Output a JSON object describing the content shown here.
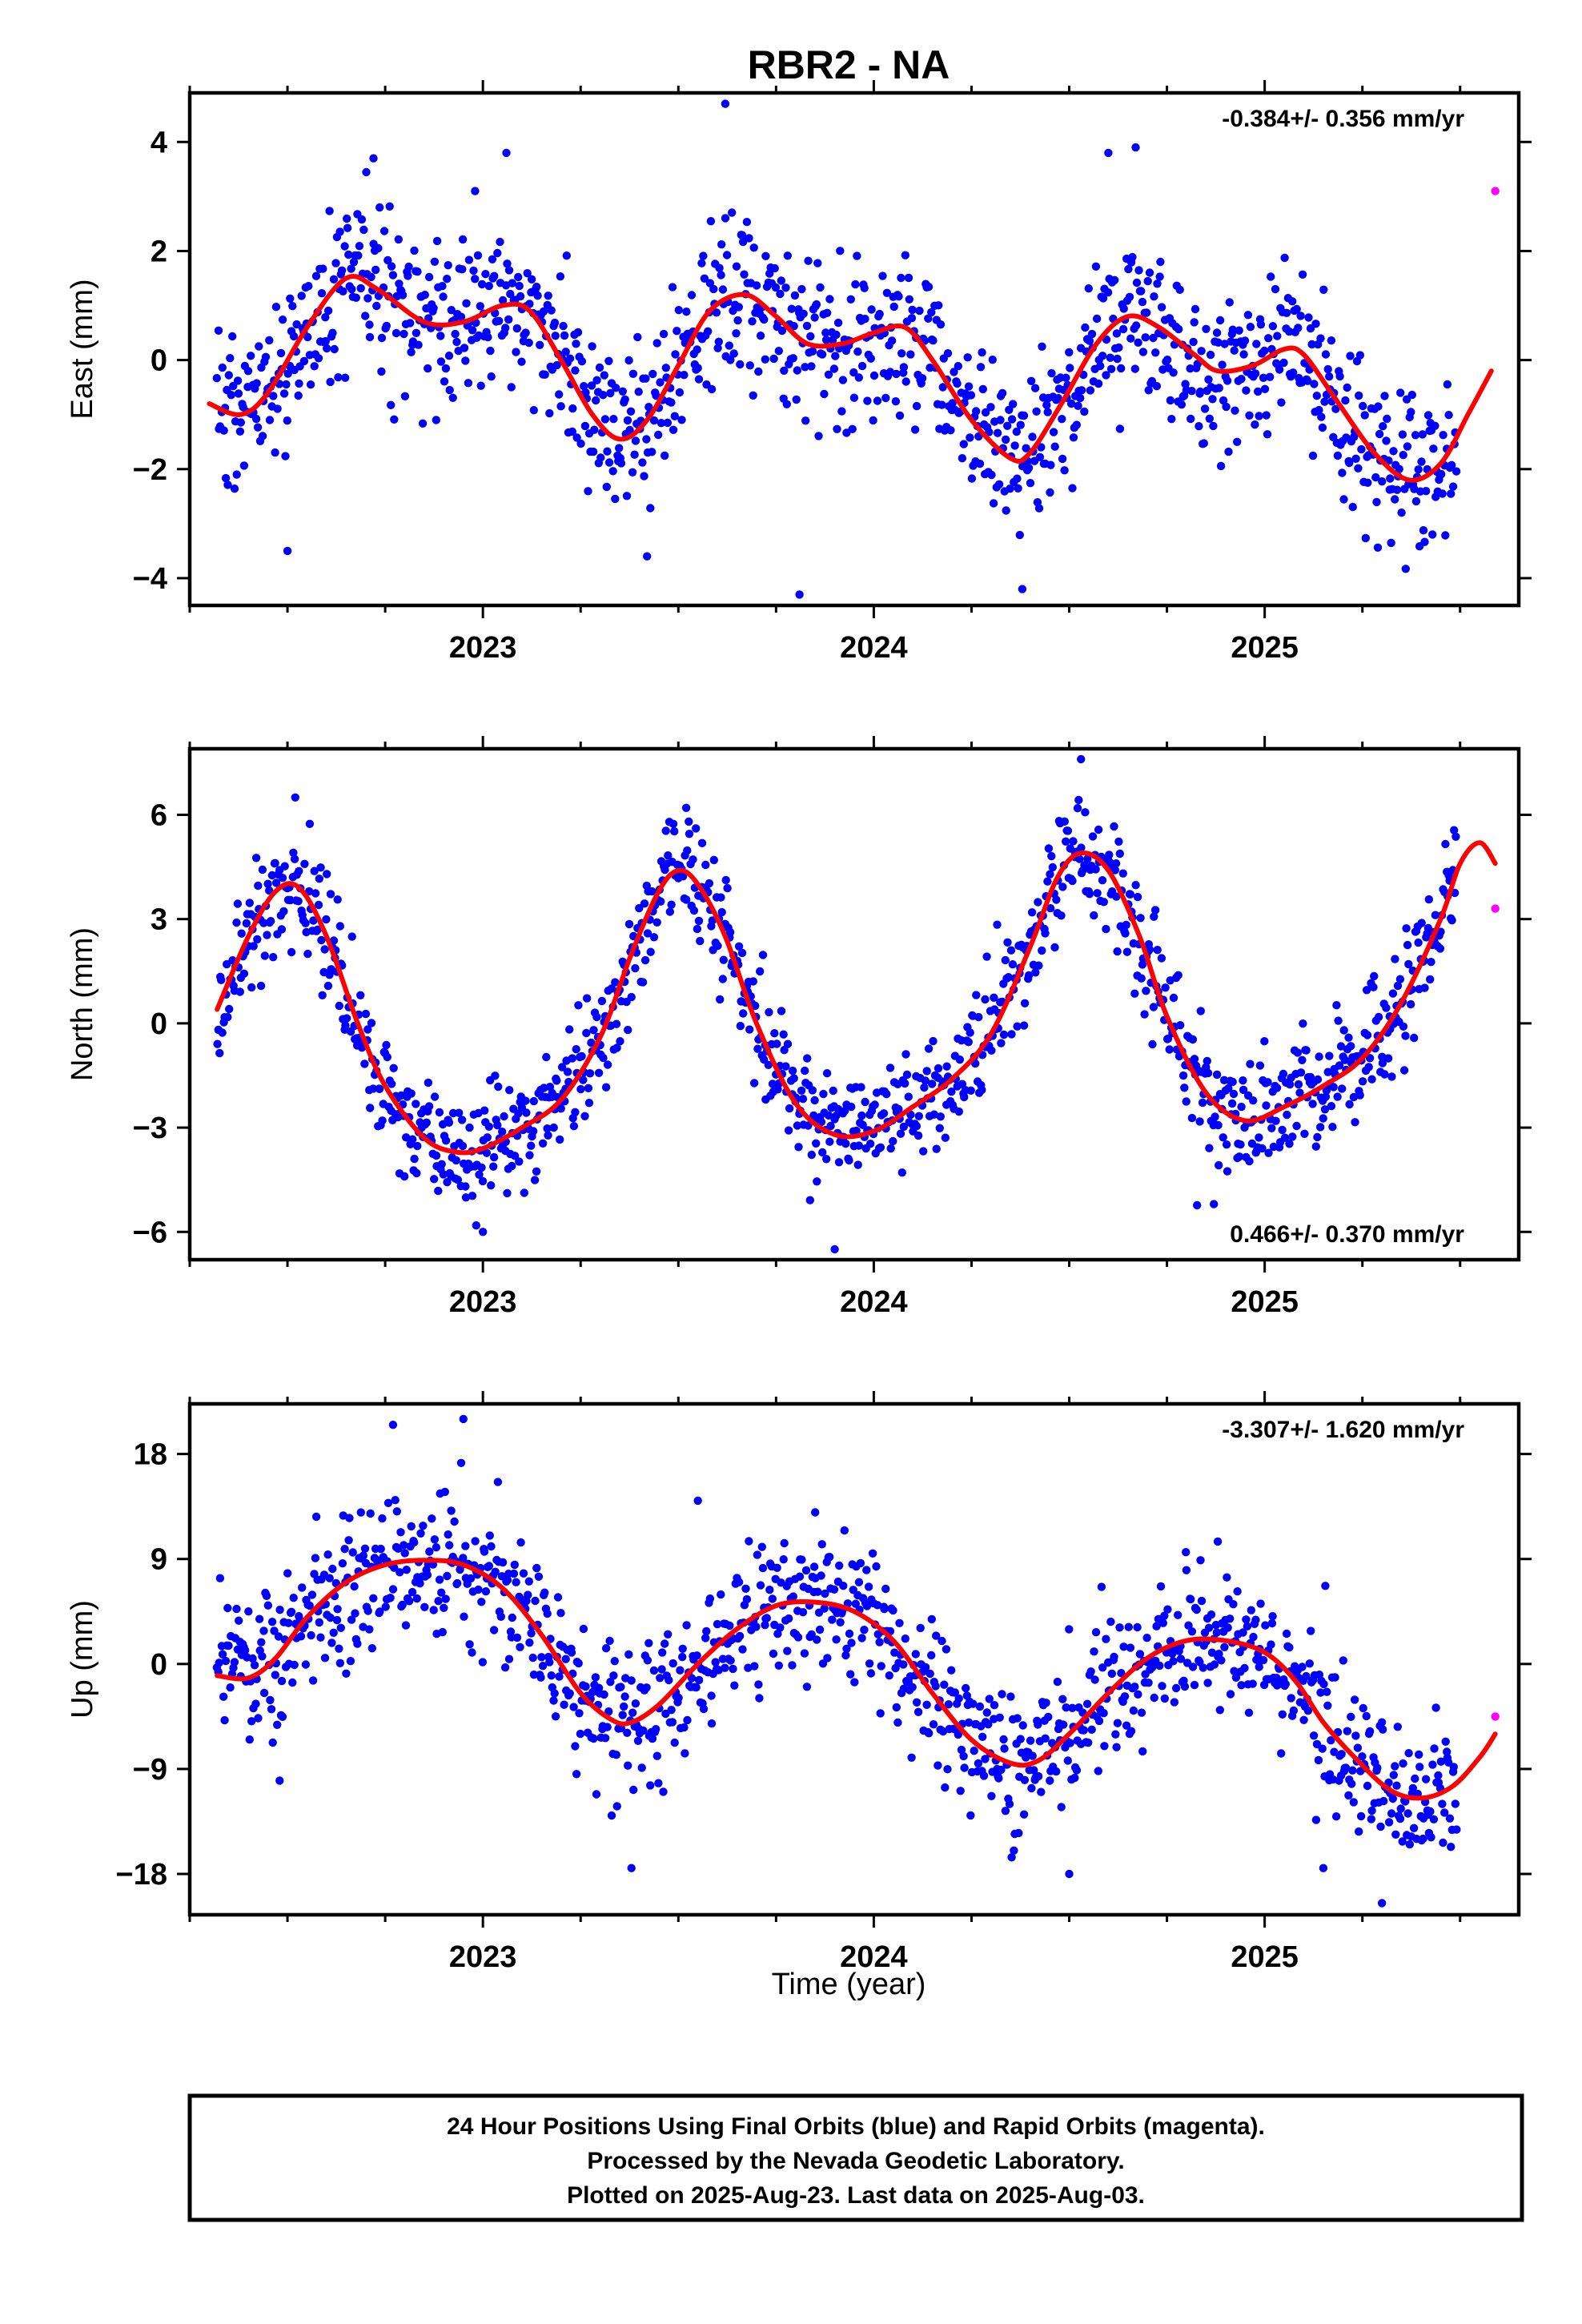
{
  "title": "RBR2 - NA",
  "x_axis": {
    "label": "Time (year)",
    "tick_labels": [
      "2023",
      "2024",
      "2025"
    ]
  },
  "footer": {
    "line1": "24 Hour Positions Using Final Orbits (blue) and Rapid Orbits (magenta).",
    "line2": "Processed by the Nevada Geodetic Laboratory.",
    "line3": "Plotted on 2025-Aug-23. Last data on 2025-Aug-03."
  },
  "colors": {
    "final": "#0000ff",
    "rapid": "#ff00ff",
    "fit": "#ff0000",
    "frame": "#000000"
  },
  "chart_data": [
    {
      "type": "scatter",
      "name": "east",
      "ylabel": "East (mm)",
      "xlim": [
        2022.25,
        2025.65
      ],
      "ylim": [
        -4.5,
        4.9
      ],
      "yticks": [
        -4,
        -2,
        0,
        2,
        4
      ],
      "ytick_labels": [
        "−4",
        "−2",
        "0",
        "2",
        "4"
      ],
      "rate_label": "-0.384+/- 0.356 mm/yr",
      "rate_position": "top-right",
      "data_start": 2022.32,
      "data_end": 2025.49,
      "data_count": 1150,
      "scatter_sd": 0.75,
      "fit": {
        "x": [
          2022.3,
          2022.38,
          2022.45,
          2022.55,
          2022.65,
          2022.73,
          2022.85,
          2022.95,
          2023.05,
          2023.12,
          2023.2,
          2023.28,
          2023.35,
          2023.42,
          2023.5,
          2023.58,
          2023.67,
          2023.75,
          2023.83,
          2023.92,
          2024.0,
          2024.08,
          2024.15,
          2024.25,
          2024.35,
          2024.4,
          2024.48,
          2024.57,
          2024.65,
          2024.73,
          2024.82,
          2024.88,
          2024.97,
          2025.05,
          2025.1,
          2025.18,
          2025.28,
          2025.37,
          2025.45,
          2025.52,
          2025.58
        ],
        "y": [
          -0.8,
          -1.0,
          -0.6,
          0.6,
          1.5,
          1.3,
          0.7,
          0.7,
          1.0,
          0.9,
          0.0,
          -1.0,
          -1.45,
          -1.1,
          -0.1,
          0.9,
          1.2,
          0.8,
          0.3,
          0.3,
          0.5,
          0.6,
          0.0,
          -1.1,
          -1.8,
          -1.7,
          -0.8,
          0.3,
          0.8,
          0.6,
          0.1,
          -0.2,
          -0.1,
          0.2,
          0.1,
          -0.7,
          -1.7,
          -2.2,
          -1.9,
          -1.0,
          -0.2
        ]
      },
      "outliers": [
        [
          2022.72,
          3.7
        ],
        [
          2022.98,
          3.1
        ],
        [
          2023.06,
          3.8
        ],
        [
          2023.62,
          4.7
        ],
        [
          2023.81,
          -4.3
        ],
        [
          2024.38,
          -4.2
        ],
        [
          2024.6,
          3.8
        ],
        [
          2024.67,
          3.9
        ],
        [
          2022.5,
          -3.5
        ],
        [
          2023.42,
          -3.6
        ]
      ],
      "rapid": [
        [
          2025.59,
          3.1
        ]
      ]
    },
    {
      "type": "scatter",
      "name": "north",
      "ylabel": "North (mm)",
      "xlim": [
        2022.25,
        2025.65
      ],
      "ylim": [
        -6.8,
        7.9
      ],
      "yticks": [
        -6,
        -3,
        0,
        3,
        6
      ],
      "ytick_labels": [
        "−6",
        "−3",
        "0",
        "3",
        "6"
      ],
      "rate_label": "0.466+/- 0.370 mm/yr",
      "rate_position": "bottom-right",
      "data_start": 2022.32,
      "data_end": 2025.49,
      "data_count": 1150,
      "scatter_sd": 0.85,
      "fit": {
        "x": [
          2022.32,
          2022.4,
          2022.47,
          2022.53,
          2022.6,
          2022.68,
          2022.75,
          2022.85,
          2022.93,
          2023.0,
          2023.1,
          2023.2,
          2023.3,
          2023.38,
          2023.45,
          2023.5,
          2023.55,
          2023.62,
          2023.7,
          2023.8,
          2023.9,
          2024.0,
          2024.1,
          2024.2,
          2024.3,
          2024.4,
          2024.47,
          2024.53,
          2024.6,
          2024.68,
          2024.75,
          2024.85,
          2024.95,
          2025.05,
          2025.15,
          2025.25,
          2025.35,
          2025.45,
          2025.5,
          2025.55,
          2025.59
        ],
        "y": [
          0.4,
          2.5,
          3.8,
          3.9,
          2.5,
          0.0,
          -1.8,
          -3.3,
          -3.7,
          -3.6,
          -3.0,
          -2.2,
          -0.4,
          2.0,
          3.8,
          4.4,
          4.0,
          2.5,
          0.0,
          -2.3,
          -3.2,
          -3.1,
          -2.4,
          -1.6,
          -0.3,
          2.2,
          4.2,
          4.9,
          4.4,
          2.5,
          0.2,
          -2.0,
          -2.8,
          -2.4,
          -1.8,
          -1.0,
          0.6,
          3.0,
          4.6,
          5.2,
          4.6
        ]
      },
      "outliers": [
        [
          2022.52,
          6.5
        ],
        [
          2023.0,
          -6.0
        ],
        [
          2023.52,
          6.2
        ],
        [
          2023.9,
          -6.5
        ],
        [
          2024.53,
          7.6
        ],
        [
          2024.87,
          -5.2
        ],
        [
          2024.62,
          4.6
        ]
      ],
      "rapid": [
        [
          2025.59,
          3.3
        ]
      ]
    },
    {
      "type": "scatter",
      "name": "up",
      "ylabel": "Up (mm)",
      "xlim": [
        2022.25,
        2025.65
      ],
      "ylim": [
        -21.5,
        22.3
      ],
      "yticks": [
        -18,
        -9,
        0,
        9,
        18
      ],
      "ytick_labels": [
        "−18",
        "−9",
        "0",
        "9",
        "18"
      ],
      "rate_label": "-3.307+/- 1.620 mm/yr",
      "rate_position": "top-right",
      "data_start": 2022.32,
      "data_end": 2025.49,
      "data_count": 1150,
      "scatter_sd": 3.2,
      "fit": {
        "x": [
          2022.32,
          2022.4,
          2022.47,
          2022.55,
          2022.65,
          2022.75,
          2022.85,
          2022.95,
          2023.05,
          2023.15,
          2023.25,
          2023.33,
          2023.38,
          2023.45,
          2023.55,
          2023.65,
          2023.75,
          2023.85,
          2023.95,
          2024.05,
          2024.15,
          2024.25,
          2024.35,
          2024.42,
          2024.5,
          2024.6,
          2024.7,
          2024.8,
          2024.9,
          2025.0,
          2025.08,
          2025.15,
          2025.23,
          2025.32,
          2025.4,
          2025.48,
          2025.55,
          2025.59
        ],
        "y": [
          -1.0,
          -1.2,
          0.5,
          4.0,
          7.0,
          8.5,
          8.9,
          8.5,
          6.5,
          2.5,
          -2.5,
          -4.8,
          -5.0,
          -3.5,
          0.0,
          3.0,
          5.0,
          5.3,
          4.5,
          2.0,
          -2.5,
          -6.5,
          -8.5,
          -8.3,
          -6.0,
          -2.5,
          0.5,
          2.0,
          2.0,
          1.0,
          -1.5,
          -5.0,
          -8.0,
          -10.8,
          -11.5,
          -10.5,
          -8.0,
          -6.0
        ]
      },
      "outliers": [
        [
          2022.77,
          20.5
        ],
        [
          2022.95,
          21.0
        ],
        [
          2022.48,
          -10.0
        ],
        [
          2023.38,
          -17.5
        ],
        [
          2023.55,
          14.0
        ],
        [
          2023.85,
          13.0
        ],
        [
          2024.5,
          -18.0
        ],
        [
          2025.3,
          -20.5
        ],
        [
          2025.15,
          -17.5
        ],
        [
          2024.88,
          10.5
        ]
      ],
      "rapid": [
        [
          2025.59,
          -4.5
        ]
      ]
    }
  ]
}
